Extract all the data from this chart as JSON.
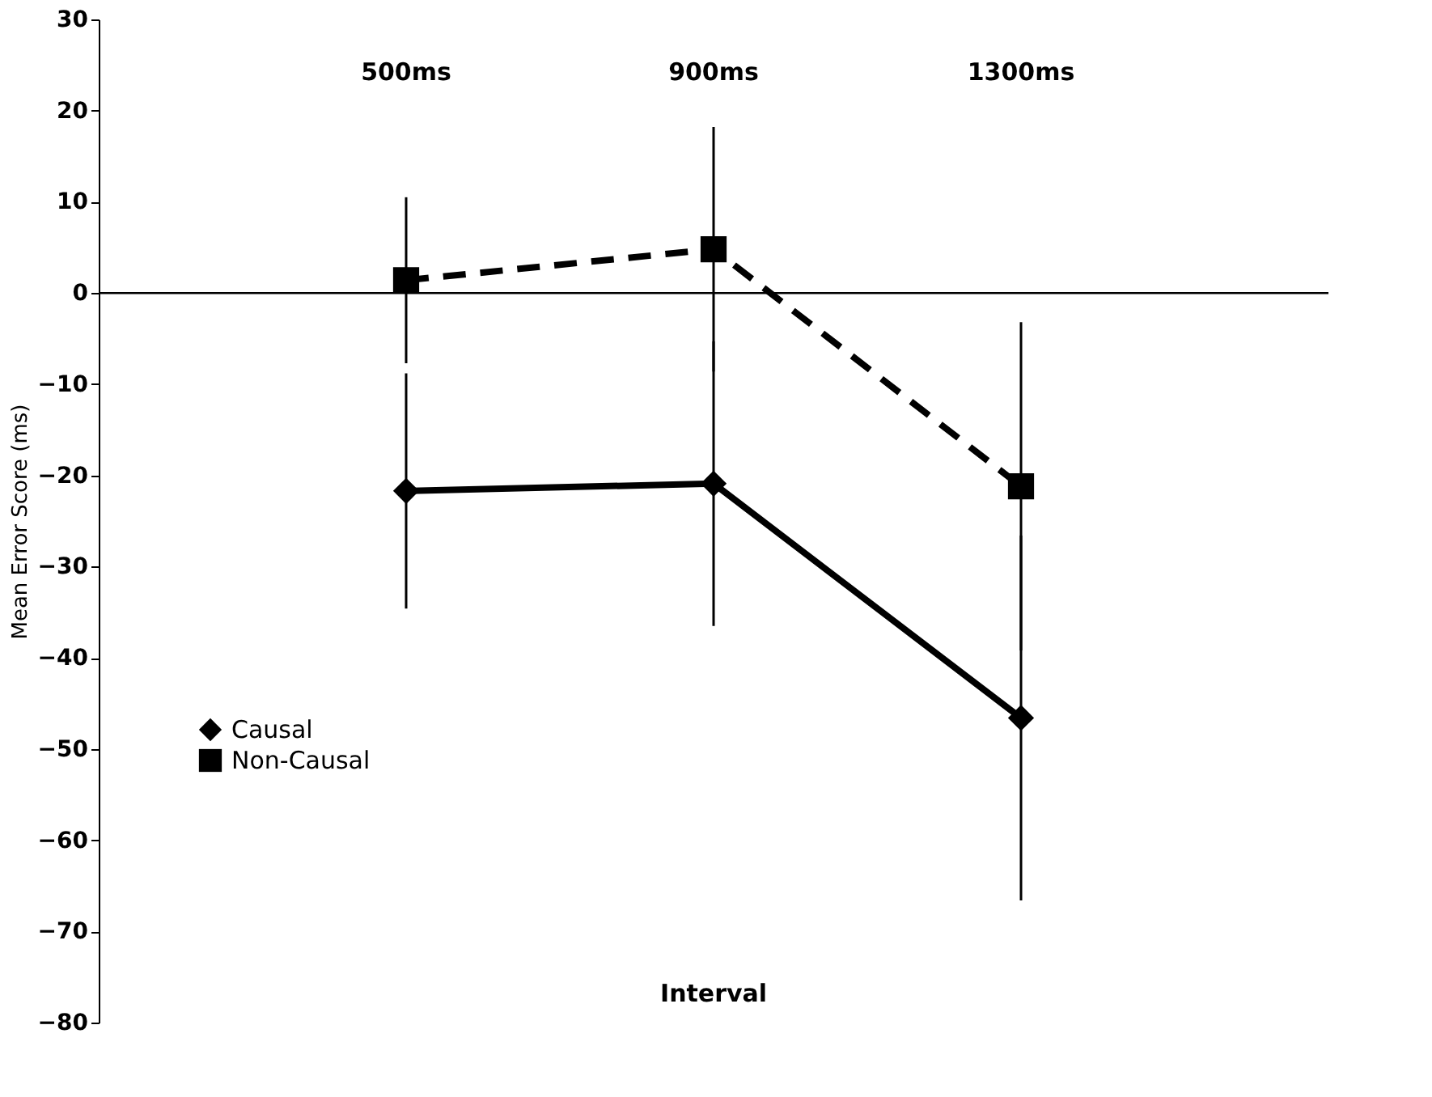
{
  "chart_data": {
    "type": "line",
    "xlabel": "Interval",
    "ylabel": "Mean Error Score (ms)",
    "categories": [
      "500ms",
      "900ms",
      "1300ms"
    ],
    "series": [
      {
        "name": "Causal",
        "color": "#000000",
        "marker": "diamond",
        "line_style": "solid",
        "values": [
          -21.7,
          -20.9,
          -46.6
        ],
        "errors": [
          12.9,
          15.6,
          20
        ]
      },
      {
        "name": "Non-Causal",
        "color": "#000000",
        "marker": "square",
        "line_style": "dashed",
        "values": [
          1.4,
          4.8,
          -21.2
        ],
        "errors": [
          9.1,
          13.4,
          18
        ]
      }
    ],
    "ylim": [
      -80,
      30
    ],
    "yticks": [
      -80,
      -70,
      -60,
      -50,
      -40,
      -30,
      -20,
      -10,
      0,
      10,
      20,
      30
    ],
    "ref_lines": [
      {
        "axis": "y",
        "value": 0
      }
    ],
    "grid": false,
    "legend": "bottom left"
  }
}
